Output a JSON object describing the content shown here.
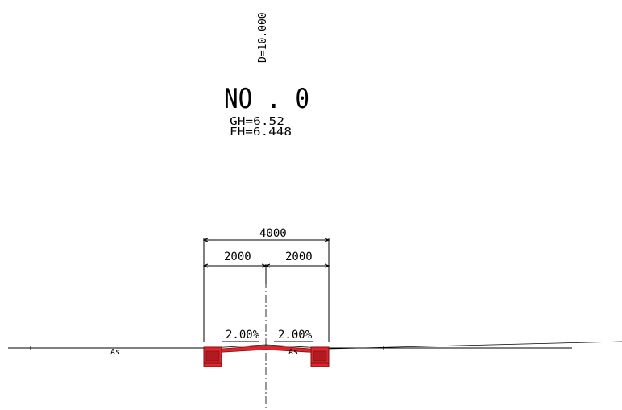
{
  "section": {
    "distance_label": "D=10.000",
    "station_label": "NO . 0",
    "ground_height_label": "GH=6.52",
    "formation_height_label": "FH=6.448"
  },
  "dimensions": {
    "total_width": "4000",
    "left_width": "2000",
    "right_width": "2000",
    "left_slope": "2.00%",
    "right_slope": "2.00%"
  },
  "materials": {
    "left_surface": "As",
    "right_surface": "As"
  },
  "colors": {
    "line": "#000000",
    "structure_fill": "#e0252c",
    "structure_edge": "#7a0f12",
    "structure_dark": "#b01a20"
  }
}
